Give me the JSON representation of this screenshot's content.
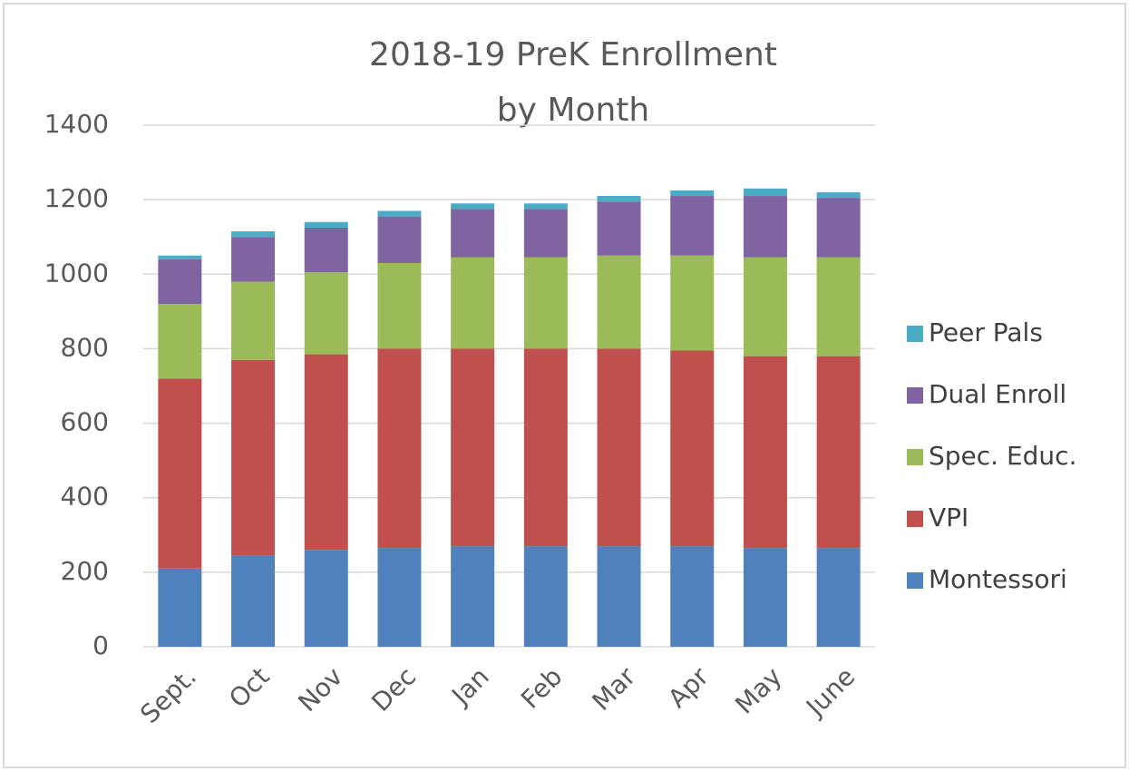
{
  "chart_data": {
    "type": "stacked_bar",
    "title": [
      "2018-19 PreK Enrollment",
      "by Month"
    ],
    "categories": [
      "Sept.",
      "Oct",
      "Nov",
      "Dec",
      "Jan",
      "Feb",
      "Mar",
      "Apr",
      "May",
      "June"
    ],
    "series": [
      {
        "name": "Montessori",
        "color": "#4f81bd",
        "values": [
          210,
          245,
          260,
          265,
          270,
          270,
          270,
          270,
          265,
          265
        ]
      },
      {
        "name": "VPI",
        "color": "#c0504d",
        "values": [
          510,
          525,
          525,
          535,
          530,
          530,
          530,
          525,
          515,
          515
        ]
      },
      {
        "name": "Spec. Educ.",
        "color": "#9bbb59",
        "values": [
          200,
          210,
          220,
          230,
          245,
          245,
          250,
          255,
          265,
          265
        ]
      },
      {
        "name": "Dual Enroll",
        "color": "#8064a2",
        "values": [
          120,
          120,
          120,
          125,
          130,
          130,
          145,
          160,
          165,
          160
        ]
      },
      {
        "name": "Peer Pals",
        "color": "#4bacc6",
        "values": [
          10,
          15,
          15,
          15,
          15,
          15,
          15,
          15,
          20,
          15
        ]
      }
    ],
    "ylim": [
      0,
      1400
    ],
    "yticks": [
      0,
      200,
      400,
      600,
      800,
      1000,
      1200,
      1400
    ],
    "grid": true,
    "legend": "right"
  }
}
